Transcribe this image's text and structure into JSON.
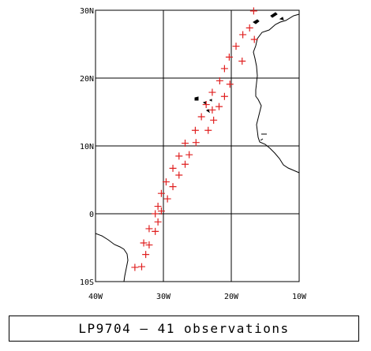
{
  "map": {
    "lon_range": [
      -40,
      -10
    ],
    "lat_range": [
      -10,
      30
    ],
    "lon_ticks": [
      {
        "value": -40,
        "label": "40W"
      },
      {
        "value": -30,
        "label": "30W"
      },
      {
        "value": -20,
        "label": "20W"
      },
      {
        "value": -10,
        "label": "10W"
      }
    ],
    "lat_ticks": [
      {
        "value": 30,
        "label": "30N"
      },
      {
        "value": 20,
        "label": "20N"
      },
      {
        "value": 10,
        "label": "10N"
      },
      {
        "value": 0,
        "label": "0"
      },
      {
        "value": -10,
        "label": "10S"
      }
    ],
    "marker_color": "#e02020",
    "marker_symbol": "plus",
    "coastline_color": "#000000"
  },
  "observations": [
    {
      "lon": -34.2,
      "lat": -7.9
    },
    {
      "lon": -33.2,
      "lat": -7.8
    },
    {
      "lon": -32.6,
      "lat": -6.0
    },
    {
      "lon": -32.9,
      "lat": -4.3
    },
    {
      "lon": -32.1,
      "lat": -4.6
    },
    {
      "lon": -32.1,
      "lat": -2.2
    },
    {
      "lon": -31.2,
      "lat": -2.6
    },
    {
      "lon": -30.8,
      "lat": -1.2
    },
    {
      "lon": -31.2,
      "lat": 0.0
    },
    {
      "lon": -30.8,
      "lat": 1.1
    },
    {
      "lon": -30.3,
      "lat": 0.4
    },
    {
      "lon": -30.3,
      "lat": 3.0
    },
    {
      "lon": -29.4,
      "lat": 2.2
    },
    {
      "lon": -29.6,
      "lat": 4.7
    },
    {
      "lon": -28.6,
      "lat": 4.0
    },
    {
      "lon": -28.6,
      "lat": 6.7
    },
    {
      "lon": -27.7,
      "lat": 5.7
    },
    {
      "lon": -27.7,
      "lat": 8.5
    },
    {
      "lon": -26.8,
      "lat": 7.3
    },
    {
      "lon": -26.2,
      "lat": 8.7
    },
    {
      "lon": -26.8,
      "lat": 10.4
    },
    {
      "lon": -25.2,
      "lat": 10.5
    },
    {
      "lon": -25.3,
      "lat": 12.3
    },
    {
      "lon": -24.4,
      "lat": 14.3
    },
    {
      "lon": -23.4,
      "lat": 12.3
    },
    {
      "lon": -23.7,
      "lat": 16.1
    },
    {
      "lon": -22.8,
      "lat": 17.9
    },
    {
      "lon": -22.8,
      "lat": 15.3
    },
    {
      "lon": -22.6,
      "lat": 13.8
    },
    {
      "lon": -21.8,
      "lat": 15.8
    },
    {
      "lon": -21.7,
      "lat": 19.6
    },
    {
      "lon": -21.0,
      "lat": 21.4
    },
    {
      "lon": -21.0,
      "lat": 17.3
    },
    {
      "lon": -20.2,
      "lat": 19.1
    },
    {
      "lon": -20.3,
      "lat": 23.1
    },
    {
      "lon": -19.3,
      "lat": 24.7
    },
    {
      "lon": -18.4,
      "lat": 22.5
    },
    {
      "lon": -18.3,
      "lat": 26.4
    },
    {
      "lon": -17.3,
      "lat": 27.4
    },
    {
      "lon": -16.6,
      "lat": 25.7
    },
    {
      "lon": -16.7,
      "lat": 29.9
    }
  ],
  "caption": "LP9704 — 41 observations"
}
